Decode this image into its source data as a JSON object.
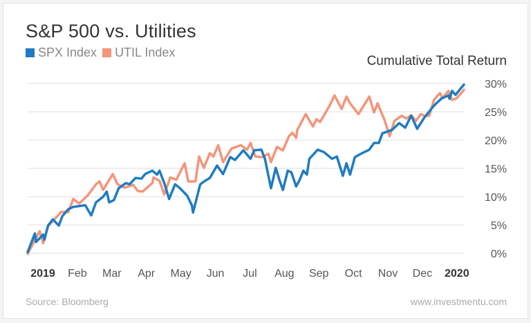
{
  "chart_data": {
    "type": "line",
    "title": "S&P 500 vs. Utilities",
    "ylabel": "Cumulative Total Return",
    "ylim": [
      0,
      30
    ],
    "yticks": [
      "0%",
      "5%",
      "10%",
      "15%",
      "20%",
      "25%",
      "30%"
    ],
    "xlim": [
      "2019-01-01",
      "2019-12-31"
    ],
    "xticks": [
      "2019",
      "Feb",
      "Mar",
      "Apr",
      "May",
      "Jun",
      "Jul",
      "Aug",
      "Sep",
      "Oct",
      "Nov",
      "Dec",
      "2020"
    ],
    "grid": true,
    "legend_position": "top-left",
    "series": [
      {
        "name": "SPX Index",
        "color": "#1f7bc1",
        "points": [
          [
            "2019-01-01",
            0.2
          ],
          [
            "2019-01-07",
            3.5
          ],
          [
            "2019-01-08",
            2
          ],
          [
            "2019-01-14",
            3.3
          ],
          [
            "2019-01-15",
            2.4
          ],
          [
            "2019-01-18",
            4.9
          ],
          [
            "2019-01-22",
            6
          ],
          [
            "2019-01-27",
            4.9
          ],
          [
            "2019-01-30",
            6.6
          ],
          [
            "2019-02-04",
            7.8
          ],
          [
            "2019-02-08",
            8.2
          ],
          [
            "2019-02-15",
            8.4
          ],
          [
            "2019-02-18",
            8.5
          ],
          [
            "2019-02-23",
            6.7
          ],
          [
            "2019-02-27",
            9
          ],
          [
            "2019-03-05",
            10
          ],
          [
            "2019-03-08",
            10.9
          ],
          [
            "2019-03-10",
            9
          ],
          [
            "2019-03-14",
            9.4
          ],
          [
            "2019-03-18",
            11.5
          ],
          [
            "2019-03-24",
            12.4
          ],
          [
            "2019-03-27",
            12.2
          ],
          [
            "2019-04-01",
            13.3
          ],
          [
            "2019-04-06",
            13.2
          ],
          [
            "2019-04-09",
            14
          ],
          [
            "2019-04-15",
            14.6
          ],
          [
            "2019-04-19",
            13.9
          ],
          [
            "2019-04-21",
            14.6
          ],
          [
            "2019-04-25",
            12.4
          ],
          [
            "2019-04-29",
            9.6
          ],
          [
            "2019-05-04",
            12.2
          ],
          [
            "2019-05-08",
            11.5
          ],
          [
            "2019-05-14",
            10.2
          ],
          [
            "2019-05-18",
            8.5
          ],
          [
            "2019-05-19",
            7.2
          ],
          [
            "2019-05-25",
            12.2
          ],
          [
            "2019-05-29",
            12.8
          ],
          [
            "2019-06-02",
            13.3
          ],
          [
            "2019-06-08",
            15.5
          ],
          [
            "2019-06-13",
            14
          ],
          [
            "2019-06-19",
            17
          ],
          [
            "2019-06-23",
            16.5
          ],
          [
            "2019-06-30",
            18.2
          ],
          [
            "2019-07-06",
            16.7
          ],
          [
            "2019-07-09",
            18.2
          ],
          [
            "2019-07-15",
            18.3
          ],
          [
            "2019-07-18",
            16.7
          ],
          [
            "2019-07-23",
            11.5
          ],
          [
            "2019-07-27",
            15.1
          ],
          [
            "2019-07-30",
            13
          ],
          [
            "2019-08-02",
            11.2
          ],
          [
            "2019-08-06",
            14.6
          ],
          [
            "2019-08-09",
            14.3
          ],
          [
            "2019-08-13",
            11.8
          ],
          [
            "2019-08-16",
            13
          ],
          [
            "2019-08-19",
            14.6
          ],
          [
            "2019-08-22",
            13.9
          ],
          [
            "2019-08-24",
            16.7
          ],
          [
            "2019-08-31",
            18.3
          ],
          [
            "2019-09-05",
            17.9
          ],
          [
            "2019-09-12",
            16.7
          ],
          [
            "2019-09-16",
            17.1
          ],
          [
            "2019-09-21",
            13.7
          ],
          [
            "2019-09-24",
            15.9
          ],
          [
            "2019-09-27",
            13.9
          ],
          [
            "2019-10-01",
            17
          ],
          [
            "2019-10-07",
            17.7
          ],
          [
            "2019-10-13",
            18.3
          ],
          [
            "2019-10-17",
            19.5
          ],
          [
            "2019-10-21",
            19.5
          ],
          [
            "2019-10-24",
            21.2
          ],
          [
            "2019-11-01",
            21.8
          ],
          [
            "2019-11-07",
            23
          ],
          [
            "2019-11-12",
            22.2
          ],
          [
            "2019-11-17",
            24.3
          ],
          [
            "2019-11-22",
            22
          ],
          [
            "2019-11-28",
            24
          ],
          [
            "2019-12-06",
            26.1
          ],
          [
            "2019-12-12",
            27.3
          ],
          [
            "2019-12-18",
            27.9
          ],
          [
            "2019-12-19",
            27.3
          ],
          [
            "2019-12-21",
            28.7
          ],
          [
            "2019-12-24",
            28
          ],
          [
            "2019-12-29",
            29.3
          ],
          [
            "2019-12-31",
            29.8
          ]
        ]
      },
      {
        "name": "UTIL Index",
        "color": "#f2957a",
        "points": [
          [
            "2019-01-01",
            -0.1
          ],
          [
            "2019-01-07",
            2.3
          ],
          [
            "2019-01-11",
            3.9
          ],
          [
            "2019-01-14",
            1.8
          ],
          [
            "2019-01-18",
            4.8
          ],
          [
            "2019-01-26",
            6.6
          ],
          [
            "2019-01-29",
            7.3
          ],
          [
            "2019-02-04",
            7.3
          ],
          [
            "2019-02-08",
            9.6
          ],
          [
            "2019-02-13",
            8.8
          ],
          [
            "2019-02-20",
            10.2
          ],
          [
            "2019-02-27",
            12.2
          ],
          [
            "2019-03-02",
            12.7
          ],
          [
            "2019-03-05",
            11.2
          ],
          [
            "2019-03-13",
            14
          ],
          [
            "2019-03-17",
            12.2
          ],
          [
            "2019-03-23",
            11.6
          ],
          [
            "2019-03-30",
            12.1
          ],
          [
            "2019-04-03",
            11
          ],
          [
            "2019-04-07",
            10.9
          ],
          [
            "2019-04-15",
            12.4
          ],
          [
            "2019-04-16",
            13.4
          ],
          [
            "2019-04-21",
            12.8
          ],
          [
            "2019-04-25",
            10.4
          ],
          [
            "2019-04-30",
            13.4
          ],
          [
            "2019-05-05",
            13
          ],
          [
            "2019-05-12",
            15.9
          ],
          [
            "2019-05-15",
            12.7
          ],
          [
            "2019-05-21",
            12.7
          ],
          [
            "2019-05-24",
            17.1
          ],
          [
            "2019-05-28",
            15.1
          ],
          [
            "2019-06-02",
            17.7
          ],
          [
            "2019-06-05",
            17.1
          ],
          [
            "2019-06-09",
            19.1
          ],
          [
            "2019-06-13",
            16.1
          ],
          [
            "2019-06-20",
            18.5
          ],
          [
            "2019-06-28",
            19.1
          ],
          [
            "2019-07-03",
            18.3
          ],
          [
            "2019-07-06",
            19.5
          ],
          [
            "2019-07-10",
            17.1
          ],
          [
            "2019-07-16",
            17
          ],
          [
            "2019-07-21",
            17.6
          ],
          [
            "2019-07-23",
            16.1
          ],
          [
            "2019-07-28",
            18.8
          ],
          [
            "2019-08-02",
            18.2
          ],
          [
            "2019-08-07",
            20.7
          ],
          [
            "2019-08-10",
            21.3
          ],
          [
            "2019-08-13",
            20.4
          ],
          [
            "2019-08-14",
            21.8
          ],
          [
            "2019-08-21",
            24.6
          ],
          [
            "2019-08-27",
            22.4
          ],
          [
            "2019-08-30",
            23.7
          ],
          [
            "2019-09-02",
            23.2
          ],
          [
            "2019-09-10",
            26.1
          ],
          [
            "2019-09-14",
            27.9
          ],
          [
            "2019-09-20",
            25.5
          ],
          [
            "2019-09-24",
            27.7
          ],
          [
            "2019-09-27",
            26.5
          ],
          [
            "2019-10-04",
            24.6
          ],
          [
            "2019-10-13",
            27.7
          ],
          [
            "2019-10-17",
            24.9
          ],
          [
            "2019-10-20",
            26.5
          ],
          [
            "2019-10-26",
            23.4
          ],
          [
            "2019-10-30",
            20.7
          ],
          [
            "2019-11-03",
            23.4
          ],
          [
            "2019-11-09",
            24.3
          ],
          [
            "2019-11-13",
            23.8
          ],
          [
            "2019-11-17",
            24.4
          ],
          [
            "2019-11-21",
            23.4
          ],
          [
            "2019-11-25",
            24.6
          ],
          [
            "2019-11-28",
            24.3
          ],
          [
            "2019-12-02",
            24.3
          ],
          [
            "2019-12-06",
            27.1
          ],
          [
            "2019-12-11",
            28.3
          ],
          [
            "2019-12-13",
            27.4
          ],
          [
            "2019-12-18",
            28.7
          ],
          [
            "2019-12-21",
            27.1
          ],
          [
            "2019-12-25",
            27.4
          ],
          [
            "2019-12-31",
            28.9
          ]
        ]
      }
    ]
  },
  "footer": {
    "source": "Source: Bloomberg",
    "site": "www.investmentu.com"
  }
}
